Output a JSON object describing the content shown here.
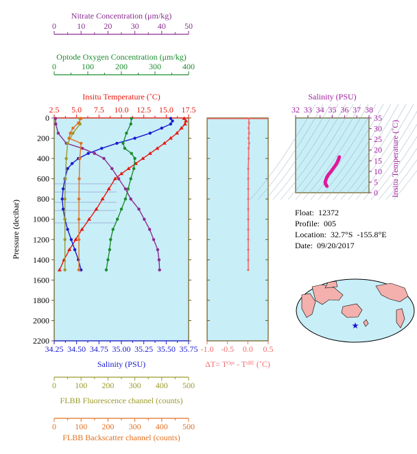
{
  "float_info": {
    "float": "Float:  12372",
    "profile": "Profile:  005",
    "location": "Location:  32.7°S  -155.8°E",
    "date": "Date:  09/20/2017"
  },
  "colors": {
    "temperature": "#e8160c",
    "salinity": "#1a1acf",
    "oxygen": "#1a8c2e",
    "nitrate": "#8a2c8f",
    "fluorescence": "#9a9a2a",
    "backscatter": "#e07020",
    "delta_t": "#f06a6a",
    "ts_points": "#e0189c",
    "panel_bg": "#c8eef8",
    "frame": "#6b5a1a"
  },
  "chart_data": [
    {
      "type": "line",
      "ylabel": "Pressure (decibar)",
      "ylim": [
        2200,
        0
      ],
      "y_ticks": [
        "0",
        "200",
        "400",
        "600",
        "800",
        "1000",
        "1200",
        "1400",
        "1600",
        "1800",
        "2000",
        "2200"
      ],
      "axes": {
        "nitrate": {
          "label": "Nitrate Concentration (μm/kg)",
          "range": [
            0,
            50
          ],
          "ticks": [
            "0",
            "10",
            "20",
            "30",
            "40",
            "50"
          ]
        },
        "oxygen": {
          "label": "Optode Oxygen Concentration (μm/kg)",
          "range": [
            0,
            400
          ],
          "ticks": [
            "0",
            "100",
            "200",
            "300",
            "400"
          ]
        },
        "temperature": {
          "label": "Insitu Temperature (˚C)",
          "range": [
            2.5,
            17.5
          ],
          "ticks": [
            "2.5",
            "5.0",
            "7.5",
            "10.0",
            "12.5",
            "15.0",
            "17.5"
          ]
        },
        "salinity": {
          "label": "Salinity (PSU)",
          "range": [
            34.25,
            35.75
          ],
          "ticks": [
            "34.25",
            "34.50",
            "34.75",
            "35.00",
            "35.25",
            "35.50",
            "35.75"
          ]
        },
        "fluorescence": {
          "label": "FLBB Fluorescence channel (counts)",
          "range": [
            0,
            500
          ],
          "ticks": [
            "0",
            "100",
            "200",
            "300",
            "400",
            "500"
          ]
        },
        "backscatter": {
          "label": "FLBB Backscatter channel (counts)",
          "range": [
            0,
            500
          ],
          "ticks": [
            "0",
            "100",
            "200",
            "300",
            "400",
            "500"
          ]
        }
      },
      "series": [
        {
          "key": "temperature",
          "points": [
            [
              17.0,
              5
            ],
            [
              17.2,
              30
            ],
            [
              17.1,
              60
            ],
            [
              16.7,
              100
            ],
            [
              16.2,
              150
            ],
            [
              15.5,
              200
            ],
            [
              14.8,
              250
            ],
            [
              14.0,
              300
            ],
            [
              13.2,
              350
            ],
            [
              12.4,
              400
            ],
            [
              11.6,
              450
            ],
            [
              10.8,
              500
            ],
            [
              10.0,
              550
            ],
            [
              9.3,
              600
            ],
            [
              8.6,
              700
            ],
            [
              7.9,
              800
            ],
            [
              7.2,
              900
            ],
            [
              6.4,
              1000
            ],
            [
              5.6,
              1100
            ],
            [
              4.9,
              1200
            ],
            [
              4.2,
              1300
            ],
            [
              3.6,
              1400
            ],
            [
              3.1,
              1500
            ]
          ]
        },
        {
          "key": "salinity",
          "points": [
            [
              35.55,
              5
            ],
            [
              35.57,
              30
            ],
            [
              35.55,
              60
            ],
            [
              35.45,
              100
            ],
            [
              35.32,
              150
            ],
            [
              35.15,
              200
            ],
            [
              34.95,
              250
            ],
            [
              34.78,
              300
            ],
            [
              34.63,
              350
            ],
            [
              34.52,
              400
            ],
            [
              34.45,
              450
            ],
            [
              34.4,
              500
            ],
            [
              34.37,
              600
            ],
            [
              34.35,
              700
            ],
            [
              34.34,
              800
            ],
            [
              34.35,
              900
            ],
            [
              34.37,
              1000
            ],
            [
              34.4,
              1100
            ],
            [
              34.44,
              1200
            ],
            [
              34.48,
              1300
            ],
            [
              34.52,
              1400
            ],
            [
              34.55,
              1500
            ]
          ]
        },
        {
          "key": "oxygen",
          "points": [
            [
              230,
              5
            ],
            [
              228,
              60
            ],
            [
              215,
              150
            ],
            [
              205,
              250
            ],
            [
              210,
              300
            ],
            [
              230,
              350
            ],
            [
              240,
              400
            ],
            [
              237,
              500
            ],
            [
              228,
              600
            ],
            [
              220,
              700
            ],
            [
              212,
              800
            ],
            [
              200,
              900
            ],
            [
              188,
              1000
            ],
            [
              175,
              1100
            ],
            [
              168,
              1200
            ],
            [
              165,
              1300
            ],
            [
              160,
              1400
            ],
            [
              155,
              1500
            ]
          ]
        },
        {
          "key": "nitrate",
          "points": [
            [
              0.5,
              5
            ],
            [
              0.6,
              60
            ],
            [
              1.5,
              150
            ],
            [
              4.5,
              250
            ],
            [
              10.5,
              300
            ],
            [
              15.0,
              350
            ],
            [
              18.5,
              400
            ],
            [
              21.5,
              500
            ],
            [
              24.0,
              600
            ],
            [
              26.5,
              700
            ],
            [
              28.5,
              800
            ],
            [
              31.5,
              900
            ],
            [
              33.5,
              1000
            ],
            [
              35.5,
              1100
            ],
            [
              37.0,
              1200
            ],
            [
              38.5,
              1300
            ],
            [
              39.0,
              1400
            ],
            [
              39.2,
              1500
            ]
          ]
        },
        {
          "key": "fluorescence",
          "points": [
            [
              95,
              5
            ],
            [
              96,
              60
            ],
            [
              70,
              150
            ],
            [
              50,
              250
            ],
            [
              45,
              400
            ],
            [
              42,
              600
            ],
            [
              40,
              800
            ],
            [
              40,
              1000
            ],
            [
              40,
              1200
            ],
            [
              40,
              1500
            ]
          ]
        },
        {
          "key": "backscatter",
          "points": [
            [
              100,
              5
            ],
            [
              90,
              50
            ],
            [
              70,
              100
            ],
            [
              60,
              150
            ],
            [
              55,
              200
            ],
            [
              100,
              250
            ],
            [
              95,
              400
            ],
            [
              93,
              600
            ],
            [
              92,
              800
            ],
            [
              92,
              1000
            ],
            [
              92,
              1200
            ],
            [
              92,
              1500
            ]
          ]
        }
      ]
    },
    {
      "type": "scatter",
      "xlabel": "ΔT= Tᴼᵖᵗ - Tˢᴮᴱ (˚C)",
      "xlim": [
        -1.0,
        0.5
      ],
      "x_ticks": [
        "-1.0",
        "-0.5",
        "0.0",
        "0.5"
      ],
      "points": [
        [
          0.02,
          5
        ],
        [
          0.03,
          50
        ],
        [
          0.02,
          100
        ],
        [
          0.03,
          150
        ],
        [
          0.02,
          200
        ],
        [
          0.03,
          250
        ],
        [
          0.02,
          300
        ],
        [
          0.02,
          400
        ],
        [
          0.01,
          500
        ],
        [
          0.01,
          600
        ],
        [
          0.01,
          700
        ],
        [
          0.01,
          800
        ],
        [
          0.01,
          900
        ],
        [
          0.01,
          1000
        ],
        [
          0.01,
          1100
        ],
        [
          0.01,
          1200
        ],
        [
          0.01,
          1300
        ],
        [
          0.01,
          1400
        ],
        [
          0.01,
          1500
        ]
      ]
    },
    {
      "type": "scatter",
      "title": "Salinity (PSU)",
      "ylabel": "Insitu Temperature (˚C)",
      "xlim": [
        32,
        38
      ],
      "ylim": [
        0,
        35
      ],
      "x_ticks": [
        "32",
        "33",
        "34",
        "35",
        "36",
        "37",
        "38"
      ],
      "y_ticks": [
        "0",
        "5",
        "10",
        "15",
        "20",
        "25",
        "30",
        "35"
      ],
      "points": [
        [
          34.55,
          3.1
        ],
        [
          34.5,
          3.6
        ],
        [
          34.44,
          4.2
        ],
        [
          34.42,
          4.9
        ],
        [
          34.45,
          5.6
        ],
        [
          34.5,
          6.4
        ],
        [
          34.55,
          7.2
        ],
        [
          34.62,
          7.9
        ],
        [
          34.7,
          8.6
        ],
        [
          34.8,
          9.3
        ],
        [
          34.9,
          10.0
        ],
        [
          35.0,
          10.8
        ],
        [
          35.1,
          11.6
        ],
        [
          35.2,
          12.4
        ],
        [
          35.3,
          13.2
        ],
        [
          35.38,
          14.0
        ],
        [
          35.45,
          14.8
        ],
        [
          35.5,
          15.5
        ],
        [
          35.55,
          16.2
        ],
        [
          35.57,
          16.7
        ]
      ]
    }
  ]
}
